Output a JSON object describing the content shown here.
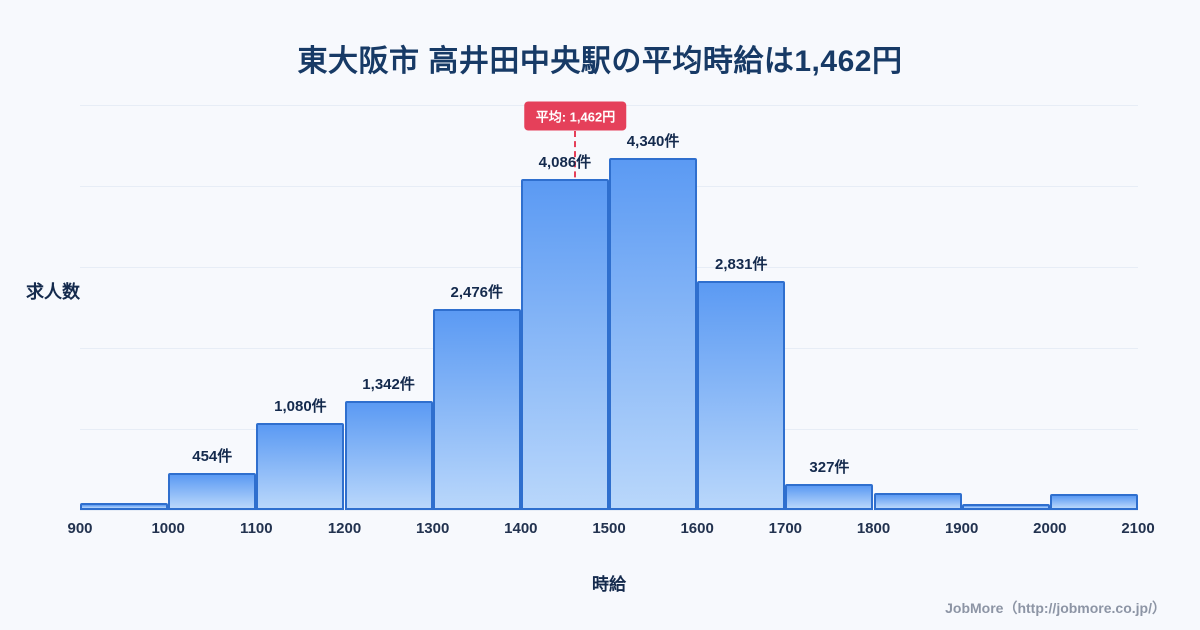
{
  "title": "東大阪市 高井田中央駅の平均時給は1,462円",
  "footer": {
    "credit": "JobMore（http://jobmore.co.jp/）"
  },
  "chart_data": {
    "type": "bar",
    "title": "東大阪市 高井田中央駅の平均時給は1,462円",
    "xlabel": "時給",
    "ylabel": "求人数",
    "xlim": [
      900,
      2100
    ],
    "ylim": [
      0,
      5000
    ],
    "grid": true,
    "legend": "none",
    "x_ticks": [
      900,
      1000,
      1100,
      1200,
      1300,
      1400,
      1500,
      1600,
      1700,
      1800,
      1900,
      2000,
      2100
    ],
    "average": 1462,
    "average_label": "平均: 1,462円",
    "bins": [
      {
        "range": [
          900,
          1000
        ],
        "value": 90,
        "label": ""
      },
      {
        "range": [
          1000,
          1100
        ],
        "value": 454,
        "label": "454件"
      },
      {
        "range": [
          1100,
          1200
        ],
        "value": 1080,
        "label": "1,080件"
      },
      {
        "range": [
          1200,
          1300
        ],
        "value": 1342,
        "label": "1,342件"
      },
      {
        "range": [
          1300,
          1400
        ],
        "value": 2476,
        "label": "2,476件"
      },
      {
        "range": [
          1400,
          1500
        ],
        "value": 4086,
        "label": "4,086件"
      },
      {
        "range": [
          1500,
          1600
        ],
        "value": 4340,
        "label": "4,340件"
      },
      {
        "range": [
          1600,
          1700
        ],
        "value": 2831,
        "label": "2,831件"
      },
      {
        "range": [
          1700,
          1800
        ],
        "value": 327,
        "label": "327件"
      },
      {
        "range": [
          1800,
          1900
        ],
        "value": 210,
        "label": ""
      },
      {
        "range": [
          1900,
          2000
        ],
        "value": 70,
        "label": ""
      },
      {
        "range": [
          2000,
          2100
        ],
        "value": 200,
        "label": ""
      }
    ],
    "colors": {
      "bar_top": "#5b9af3",
      "bar_bottom": "#b9d7fb",
      "bar_border": "#2f6fce",
      "average_line": "#e5405a",
      "grid_line": "#e7edf6",
      "title_text": "#173a66"
    }
  }
}
